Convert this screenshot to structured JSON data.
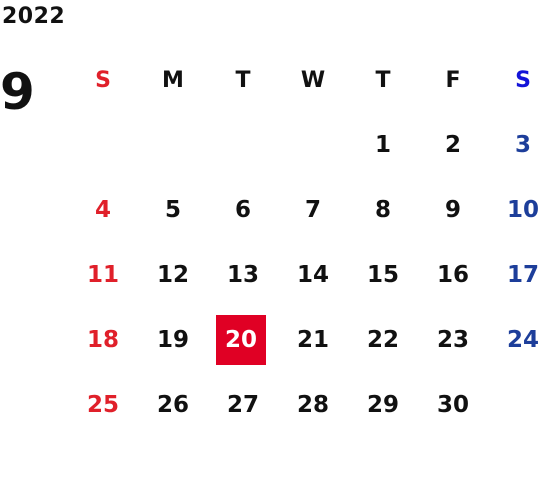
{
  "calendar": {
    "year": "2022",
    "month": "9",
    "weekdays": [
      "S",
      "M",
      "T",
      "W",
      "T",
      "F",
      "S"
    ],
    "weeks": [
      [
        "",
        "",
        "",
        "",
        "1",
        "2",
        "3"
      ],
      [
        "4",
        "5",
        "6",
        "7",
        "8",
        "9",
        "10"
      ],
      [
        "11",
        "12",
        "13",
        "14",
        "15",
        "16",
        "17"
      ],
      [
        "18",
        "19",
        "20",
        "21",
        "22",
        "23",
        "24"
      ],
      [
        "25",
        "26",
        "27",
        "28",
        "29",
        "30",
        ""
      ]
    ],
    "highlighted_day": "20",
    "colors": {
      "sunday": "#e0202a",
      "saturday": "#1d3e9a",
      "saturday_header": "#1414d8",
      "highlight_bg": "#e00024"
    }
  }
}
